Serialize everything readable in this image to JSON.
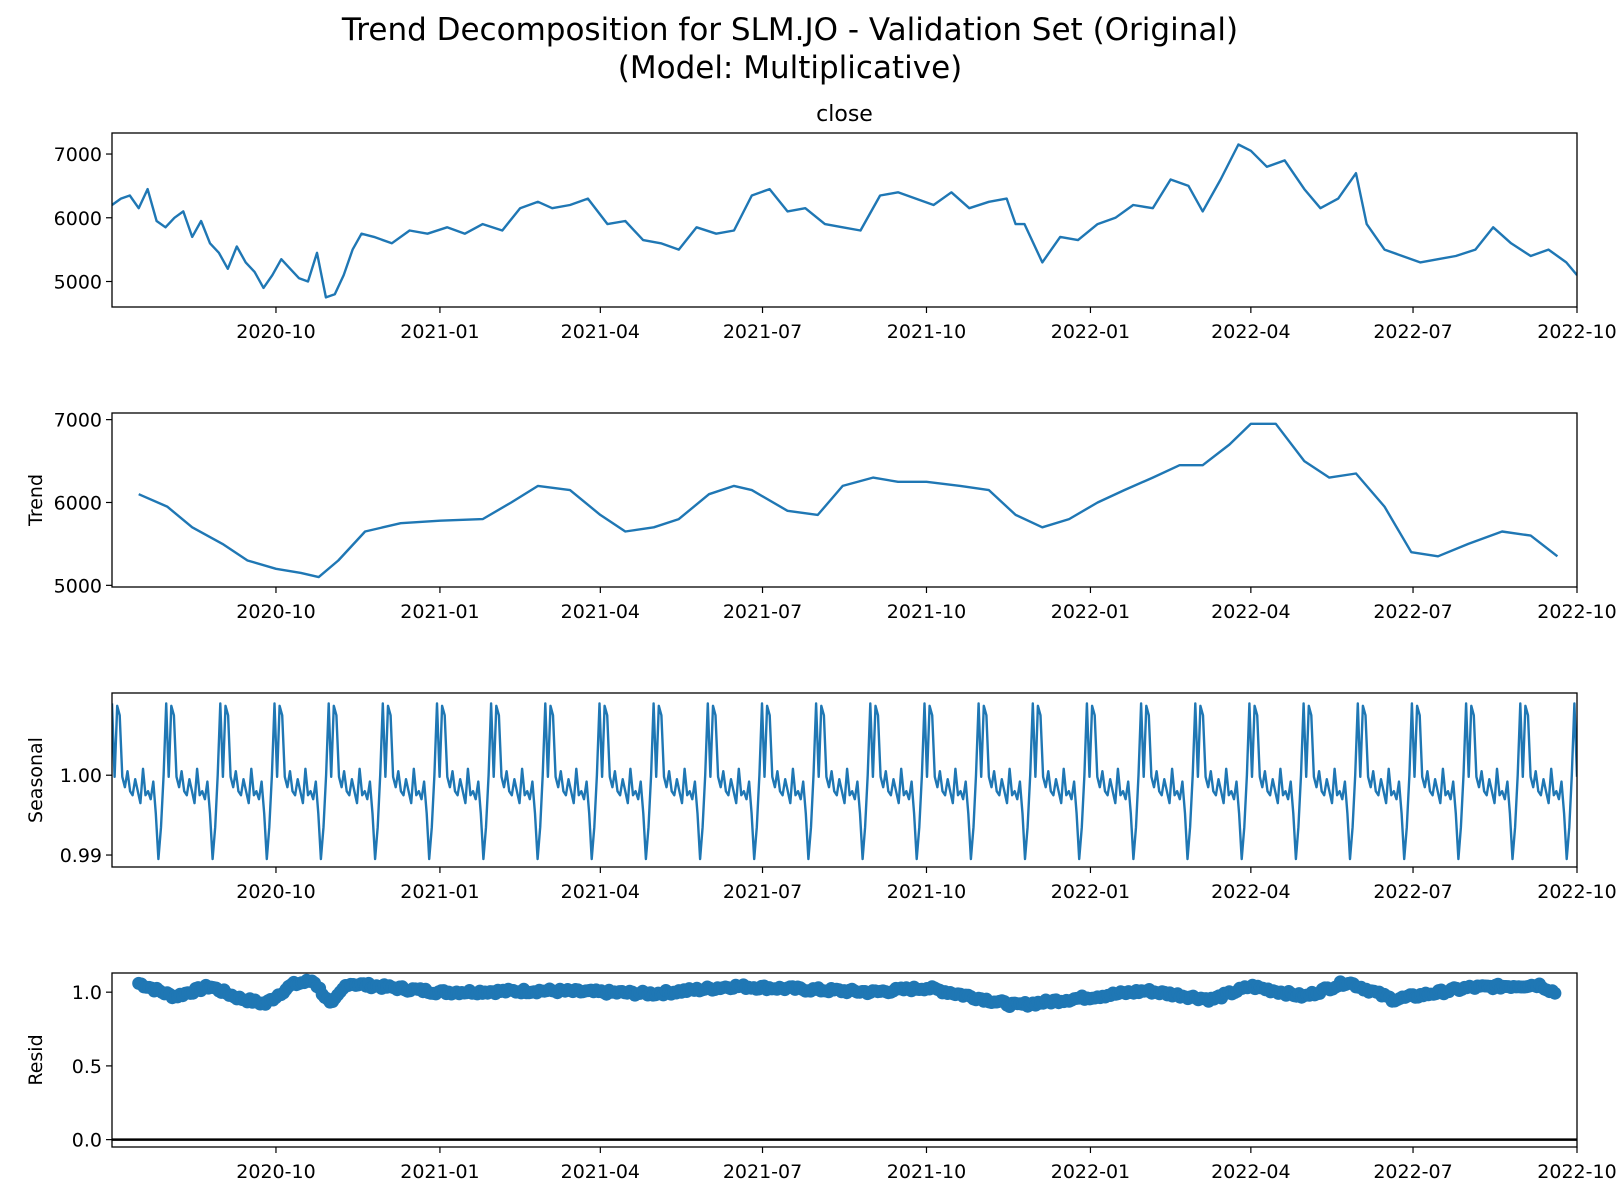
{
  "figure": {
    "title_line1": "Trend Decomposition for SLM.JO - Validation Set (Original)",
    "title_line2": "(Model: Multiplicative)"
  },
  "colors": {
    "series": "#1f77b4",
    "axis": "#000000"
  },
  "chart_data": [
    {
      "type": "line",
      "title": "close",
      "xlabel": "",
      "ylabel": "",
      "xlim": [
        "2020-07-01",
        "2022-10-01"
      ],
      "ylim": [
        4600,
        7330
      ],
      "xticks": [
        "2020-10",
        "2021-01",
        "2021-04",
        "2021-07",
        "2021-10",
        "2022-01",
        "2022-04",
        "2022-07",
        "2022-10"
      ],
      "yticks": [
        5000,
        6000,
        7000
      ],
      "grid": false,
      "series": [
        {
          "x": [
            "2020-07-01",
            "2020-07-06",
            "2020-07-11",
            "2020-07-16",
            "2020-07-21",
            "2020-07-26",
            "2020-07-31",
            "2020-08-05",
            "2020-08-10",
            "2020-08-15",
            "2020-08-20",
            "2020-08-25",
            "2020-08-30",
            "2020-09-04",
            "2020-09-09",
            "2020-09-14",
            "2020-09-19",
            "2020-09-24",
            "2020-09-29",
            "2020-10-04",
            "2020-10-09",
            "2020-10-14",
            "2020-10-19",
            "2020-10-24",
            "2020-10-29",
            "2020-11-03",
            "2020-11-08",
            "2020-11-13",
            "2020-11-18",
            "2020-11-25",
            "2020-12-05",
            "2020-12-15",
            "2020-12-25",
            "2021-01-05",
            "2021-01-15",
            "2021-01-25",
            "2021-02-05",
            "2021-02-15",
            "2021-02-25",
            "2021-03-05",
            "2021-03-15",
            "2021-03-25",
            "2021-04-05",
            "2021-04-15",
            "2021-04-25",
            "2021-05-05",
            "2021-05-15",
            "2021-05-25",
            "2021-06-05",
            "2021-06-15",
            "2021-06-25",
            "2021-07-05",
            "2021-07-15",
            "2021-07-25",
            "2021-08-05",
            "2021-08-15",
            "2021-08-25",
            "2021-09-05",
            "2021-09-15",
            "2021-09-25",
            "2021-10-05",
            "2021-10-15",
            "2021-10-25",
            "2021-11-05",
            "2021-11-15",
            "2021-11-20",
            "2021-11-25",
            "2021-12-05",
            "2021-12-15",
            "2021-12-25",
            "2022-01-05",
            "2022-01-15",
            "2022-01-25",
            "2022-02-05",
            "2022-02-15",
            "2022-02-25",
            "2022-03-05",
            "2022-03-15",
            "2022-03-25",
            "2022-04-01",
            "2022-04-10",
            "2022-04-20",
            "2022-05-01",
            "2022-05-10",
            "2022-05-20",
            "2022-05-30",
            "2022-06-05",
            "2022-06-15",
            "2022-06-25",
            "2022-07-05",
            "2022-07-15",
            "2022-07-25",
            "2022-08-05",
            "2022-08-15",
            "2022-08-25",
            "2022-09-05",
            "2022-09-15",
            "2022-09-25",
            "2022-10-01"
          ],
          "y": [
            6200,
            6300,
            6350,
            6150,
            6450,
            5950,
            5850,
            6000,
            6100,
            5700,
            5950,
            5600,
            5450,
            5200,
            5550,
            5300,
            5150,
            4900,
            5100,
            5350,
            5200,
            5050,
            5000,
            5450,
            4750,
            4800,
            5100,
            5500,
            5750,
            5700,
            5600,
            5800,
            5750,
            5850,
            5750,
            5900,
            5800,
            6150,
            6250,
            6150,
            6200,
            6300,
            5900,
            5950,
            5650,
            5600,
            5500,
            5850,
            5750,
            5800,
            6350,
            6450,
            6100,
            6150,
            5900,
            5850,
            5800,
            6350,
            6400,
            6300,
            6200,
            6400,
            6150,
            6250,
            6300,
            5900,
            5900,
            5300,
            5700,
            5650,
            5900,
            6000,
            6200,
            6150,
            6600,
            6500,
            6100,
            6600,
            7150,
            7050,
            6800,
            6900,
            6450,
            6150,
            6300,
            6700,
            5900,
            5500,
            5400,
            5300,
            5350,
            5400,
            5500,
            5850,
            5600,
            5400,
            5500,
            5300,
            5100
          ]
        }
      ]
    },
    {
      "type": "line",
      "title": "",
      "xlabel": "",
      "ylabel": "Trend",
      "xlim": [
        "2020-07-01",
        "2022-10-01"
      ],
      "ylim": [
        4980,
        7080
      ],
      "xticks": [
        "2020-10",
        "2021-01",
        "2021-04",
        "2021-07",
        "2021-10",
        "2022-01",
        "2022-04",
        "2022-07",
        "2022-10"
      ],
      "yticks": [
        5000,
        6000,
        7000
      ],
      "grid": false,
      "series": [
        {
          "x": [
            "2020-07-16",
            "2020-08-01",
            "2020-08-15",
            "2020-09-01",
            "2020-09-15",
            "2020-10-01",
            "2020-10-15",
            "2020-10-25",
            "2020-11-05",
            "2020-11-20",
            "2020-12-10",
            "2021-01-01",
            "2021-01-25",
            "2021-02-10",
            "2021-02-25",
            "2021-03-15",
            "2021-04-01",
            "2021-04-15",
            "2021-05-01",
            "2021-05-15",
            "2021-06-01",
            "2021-06-15",
            "2021-06-25",
            "2021-07-15",
            "2021-08-01",
            "2021-08-15",
            "2021-09-01",
            "2021-09-15",
            "2021-10-01",
            "2021-10-20",
            "2021-11-05",
            "2021-11-20",
            "2021-12-05",
            "2021-12-20",
            "2022-01-05",
            "2022-01-20",
            "2022-02-05",
            "2022-02-20",
            "2022-03-05",
            "2022-03-20",
            "2022-04-01",
            "2022-04-15",
            "2022-05-01",
            "2022-05-15",
            "2022-05-30",
            "2022-06-15",
            "2022-06-30",
            "2022-07-15",
            "2022-08-01",
            "2022-08-20",
            "2022-09-05",
            "2022-09-20"
          ],
          "y": [
            6100,
            5950,
            5700,
            5500,
            5300,
            5200,
            5150,
            5100,
            5300,
            5650,
            5750,
            5780,
            5800,
            6000,
            6200,
            6150,
            5850,
            5650,
            5700,
            5800,
            6100,
            6200,
            6150,
            5900,
            5850,
            6200,
            6300,
            6250,
            6250,
            6200,
            6150,
            5850,
            5700,
            5800,
            6000,
            6150,
            6300,
            6450,
            6450,
            6700,
            6950,
            6950,
            6500,
            6300,
            6350,
            5950,
            5400,
            5350,
            5500,
            5650,
            5600,
            5350
          ]
        }
      ]
    },
    {
      "type": "line",
      "title": "",
      "xlabel": "",
      "ylabel": "Seasonal",
      "xlim": [
        "2020-07-01",
        "2022-10-01"
      ],
      "ylim": [
        0.9885,
        1.0103
      ],
      "xticks": [
        "2020-10",
        "2021-01",
        "2021-04",
        "2021-07",
        "2021-10",
        "2022-01",
        "2022-04",
        "2022-07",
        "2022-10"
      ],
      "yticks": [
        "0.99",
        "1.00"
      ],
      "grid": false,
      "period_trading_days": 21,
      "pattern": [
        1.009,
        0.9998,
        1.0087,
        1.0075,
        0.9998,
        0.9985,
        1.0005,
        0.998,
        0.9975,
        0.9995,
        0.998,
        0.9965,
        1.0008,
        0.9975,
        0.998,
        0.997,
        0.9992,
        0.9952,
        0.9895,
        0.9935,
        1.0
      ]
    },
    {
      "type": "scatter",
      "title": "",
      "xlabel": "",
      "ylabel": "Resid",
      "xlim": [
        "2020-07-01",
        "2022-10-01"
      ],
      "ylim": [
        -0.05,
        1.13
      ],
      "xticks": [
        "2020-10",
        "2021-01",
        "2021-04",
        "2021-07",
        "2021-10",
        "2022-01",
        "2022-04",
        "2022-07",
        "2022-10"
      ],
      "yticks": [
        "0.0",
        "0.5",
        "1.0"
      ],
      "grid": false,
      "baseline": 0,
      "series": [
        {
          "x": [
            "2020-07-16",
            "2020-08-05",
            "2020-08-25",
            "2020-09-10",
            "2020-09-25",
            "2020-10-10",
            "2020-10-22",
            "2020-11-01",
            "2020-11-10",
            "2021-01-01",
            "2021-03-01",
            "2021-05-01",
            "2021-06-15",
            "2021-09-01",
            "2021-10-01",
            "2021-11-20",
            "2022-02-01",
            "2022-03-10",
            "2022-04-01",
            "2022-05-01",
            "2022-05-25",
            "2022-06-20",
            "2022-08-01",
            "2022-09-10",
            "2022-09-20"
          ],
          "y": [
            1.06,
            0.97,
            1.04,
            0.96,
            0.92,
            1.05,
            1.08,
            0.91,
            1.06,
            1.0,
            1.01,
            0.99,
            1.04,
            1.0,
            1.03,
            0.91,
            1.01,
            0.95,
            1.04,
            0.97,
            1.07,
            0.95,
            1.03,
            1.05,
            0.99
          ]
        }
      ]
    }
  ]
}
